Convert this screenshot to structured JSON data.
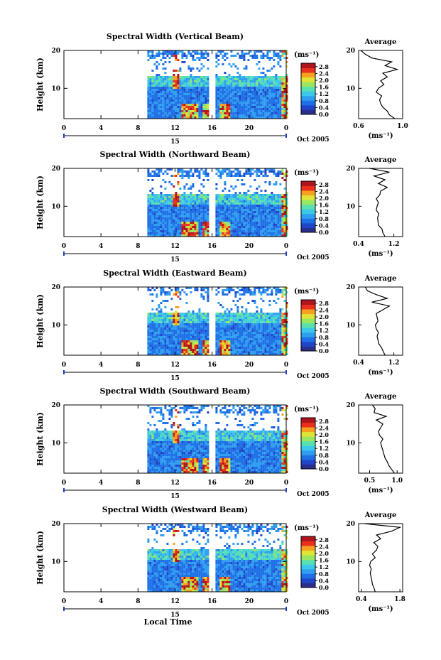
{
  "figure": {
    "xlabel": "Local Time",
    "date_label": "Oct 2005",
    "day_label": "15",
    "ylabel": "Height (km)",
    "unit_label": "(ms⁻¹)",
    "profile_title": "Average",
    "profile_xlabel": "(ms⁻¹)"
  },
  "chart_data": [
    {
      "type": "heatmap",
      "title": "Spectral Width (Vertical Beam)",
      "xlabel": "Local Time",
      "ylabel": "Height (km)",
      "x_ticks": [
        "0",
        "4",
        "8",
        "12",
        "16",
        "20",
        "0"
      ],
      "xlim": [
        0,
        24
      ],
      "y_ticks": [
        "10",
        "20"
      ],
      "ylim": [
        2,
        20
      ],
      "data_start_hour": 9,
      "colorbar": {
        "label": "(ms⁻¹)",
        "ticks": [
          "0.0",
          "0.4",
          "0.8",
          "1.2",
          "1.6",
          "2.0",
          "2.4",
          "2.8"
        ],
        "range": [
          0,
          3.0
        ]
      },
      "profile": {
        "title": "Average",
        "xlabel": "(ms⁻¹)",
        "x_ticks": [
          "0.6",
          "1.0"
        ],
        "xlim": [
          0.6,
          1.0
        ],
        "heights": [
          2,
          3,
          4,
          5,
          6,
          7,
          8,
          9,
          10,
          11,
          12,
          13,
          14,
          15,
          16,
          17,
          18,
          19,
          20
        ],
        "values": [
          0.93,
          0.88,
          0.86,
          0.82,
          0.8,
          0.79,
          0.81,
          0.76,
          0.78,
          0.83,
          0.8,
          0.86,
          0.82,
          0.95,
          0.84,
          0.9,
          0.72,
          0.66,
          0.62
        ]
      }
    },
    {
      "type": "heatmap",
      "title": "Spectral Width (Northward Beam)",
      "xlabel": "Local Time",
      "ylabel": "Height (km)",
      "x_ticks": [
        "0",
        "4",
        "8",
        "12",
        "16",
        "20",
        "0"
      ],
      "xlim": [
        0,
        24
      ],
      "y_ticks": [
        "10",
        "20"
      ],
      "ylim": [
        2,
        20
      ],
      "data_start_hour": 9,
      "colorbar": {
        "label": "(ms⁻¹)",
        "ticks": [
          "0.0",
          "0.4",
          "0.8",
          "1.2",
          "1.6",
          "2.0",
          "2.4",
          "2.8"
        ],
        "range": [
          0,
          3.0
        ]
      },
      "profile": {
        "title": "Average",
        "xlabel": "(ms⁻¹)",
        "x_ticks": [
          "0.4",
          "1.2"
        ],
        "xlim": [
          0.4,
          1.4
        ],
        "heights": [
          2,
          3,
          4,
          5,
          6,
          7,
          8,
          9,
          10,
          11,
          12,
          13,
          14,
          15,
          16,
          17,
          18,
          19,
          20
        ],
        "values": [
          1.0,
          0.95,
          0.93,
          0.85,
          0.84,
          0.83,
          0.86,
          0.8,
          0.82,
          0.85,
          0.8,
          0.88,
          0.9,
          1.05,
          0.85,
          1.0,
          0.75,
          1.1,
          0.65
        ]
      }
    },
    {
      "type": "heatmap",
      "title": "Spectral Width (Eastward Beam)",
      "xlabel": "Local Time",
      "ylabel": "Height (km)",
      "x_ticks": [
        "0",
        "4",
        "8",
        "12",
        "16",
        "20",
        "0"
      ],
      "xlim": [
        0,
        24
      ],
      "y_ticks": [
        "10",
        "20"
      ],
      "ylim": [
        2,
        20
      ],
      "data_start_hour": 9,
      "colorbar": {
        "label": "(ms⁻¹)",
        "ticks": [
          "0.0",
          "0.4",
          "0.8",
          "1.2",
          "1.6",
          "2.0",
          "2.4",
          "2.8"
        ],
        "range": [
          0,
          3.0
        ]
      },
      "profile": {
        "title": "Average",
        "xlabel": "(ms⁻¹)",
        "x_ticks": [
          "0.4",
          "1.2"
        ],
        "xlim": [
          0.4,
          1.4
        ],
        "heights": [
          2,
          3,
          4,
          5,
          6,
          7,
          8,
          9,
          10,
          11,
          12,
          13,
          14,
          15,
          16,
          17,
          18,
          19,
          20
        ],
        "values": [
          1.0,
          0.96,
          0.92,
          0.86,
          0.84,
          0.82,
          0.85,
          0.8,
          0.78,
          0.84,
          0.82,
          0.8,
          0.95,
          1.1,
          0.7,
          1.05,
          0.8,
          0.6,
          0.55
        ]
      }
    },
    {
      "type": "heatmap",
      "title": "Spectral Width (Southward Beam)",
      "xlabel": "Local Time",
      "ylabel": "Height (km)",
      "x_ticks": [
        "0",
        "4",
        "8",
        "12",
        "16",
        "20",
        "0"
      ],
      "xlim": [
        0,
        24
      ],
      "y_ticks": [
        "10",
        "20"
      ],
      "ylim": [
        2,
        20
      ],
      "data_start_hour": 9,
      "colorbar": {
        "label": "(ms⁻¹)",
        "ticks": [
          "0.0",
          "0.4",
          "0.8",
          "1.2",
          "1.6",
          "2.0",
          "2.4",
          "2.8"
        ],
        "range": [
          0,
          3.0
        ]
      },
      "profile": {
        "title": "Average",
        "xlabel": "(ms⁻¹)",
        "x_ticks": [
          "0.5",
          "1.0"
        ],
        "xlim": [
          0.3,
          1.1
        ],
        "heights": [
          2,
          3,
          4,
          5,
          6,
          7,
          8,
          9,
          10,
          11,
          12,
          13,
          14,
          15,
          16,
          17,
          18,
          19,
          20
        ],
        "values": [
          0.95,
          0.9,
          0.85,
          0.82,
          0.78,
          0.76,
          0.74,
          0.72,
          0.7,
          0.74,
          0.68,
          0.66,
          0.7,
          0.74,
          0.62,
          0.8,
          0.58,
          0.6,
          0.55
        ]
      }
    },
    {
      "type": "heatmap",
      "title": "Spectral Width (Westward Beam)",
      "xlabel": "Local Time",
      "ylabel": "Height (km)",
      "x_ticks": [
        "0",
        "4",
        "8",
        "12",
        "16",
        "20",
        "0"
      ],
      "xlim": [
        0,
        24
      ],
      "y_ticks": [
        "10",
        "20"
      ],
      "ylim": [
        2,
        20
      ],
      "data_start_hour": 9,
      "colorbar": {
        "label": "(ms⁻¹)",
        "ticks": [
          "0.0",
          "0.4",
          "0.8",
          "1.2",
          "1.6",
          "2.0",
          "2.4",
          "2.8"
        ],
        "range": [
          0,
          3.0
        ]
      },
      "profile": {
        "title": "Average",
        "xlabel": "(ms⁻¹)",
        "x_ticks": [
          "0.4",
          "1.8"
        ],
        "xlim": [
          0.3,
          1.9
        ],
        "heights": [
          2,
          3,
          4,
          5,
          6,
          7,
          8,
          9,
          10,
          11,
          12,
          13,
          14,
          15,
          16,
          17,
          18,
          19,
          20
        ],
        "values": [
          0.9,
          0.86,
          0.8,
          0.78,
          0.75,
          0.72,
          0.76,
          0.7,
          0.74,
          0.9,
          0.8,
          0.95,
          1.0,
          0.85,
          1.1,
          0.95,
          1.5,
          1.8,
          0.5
        ]
      }
    }
  ]
}
